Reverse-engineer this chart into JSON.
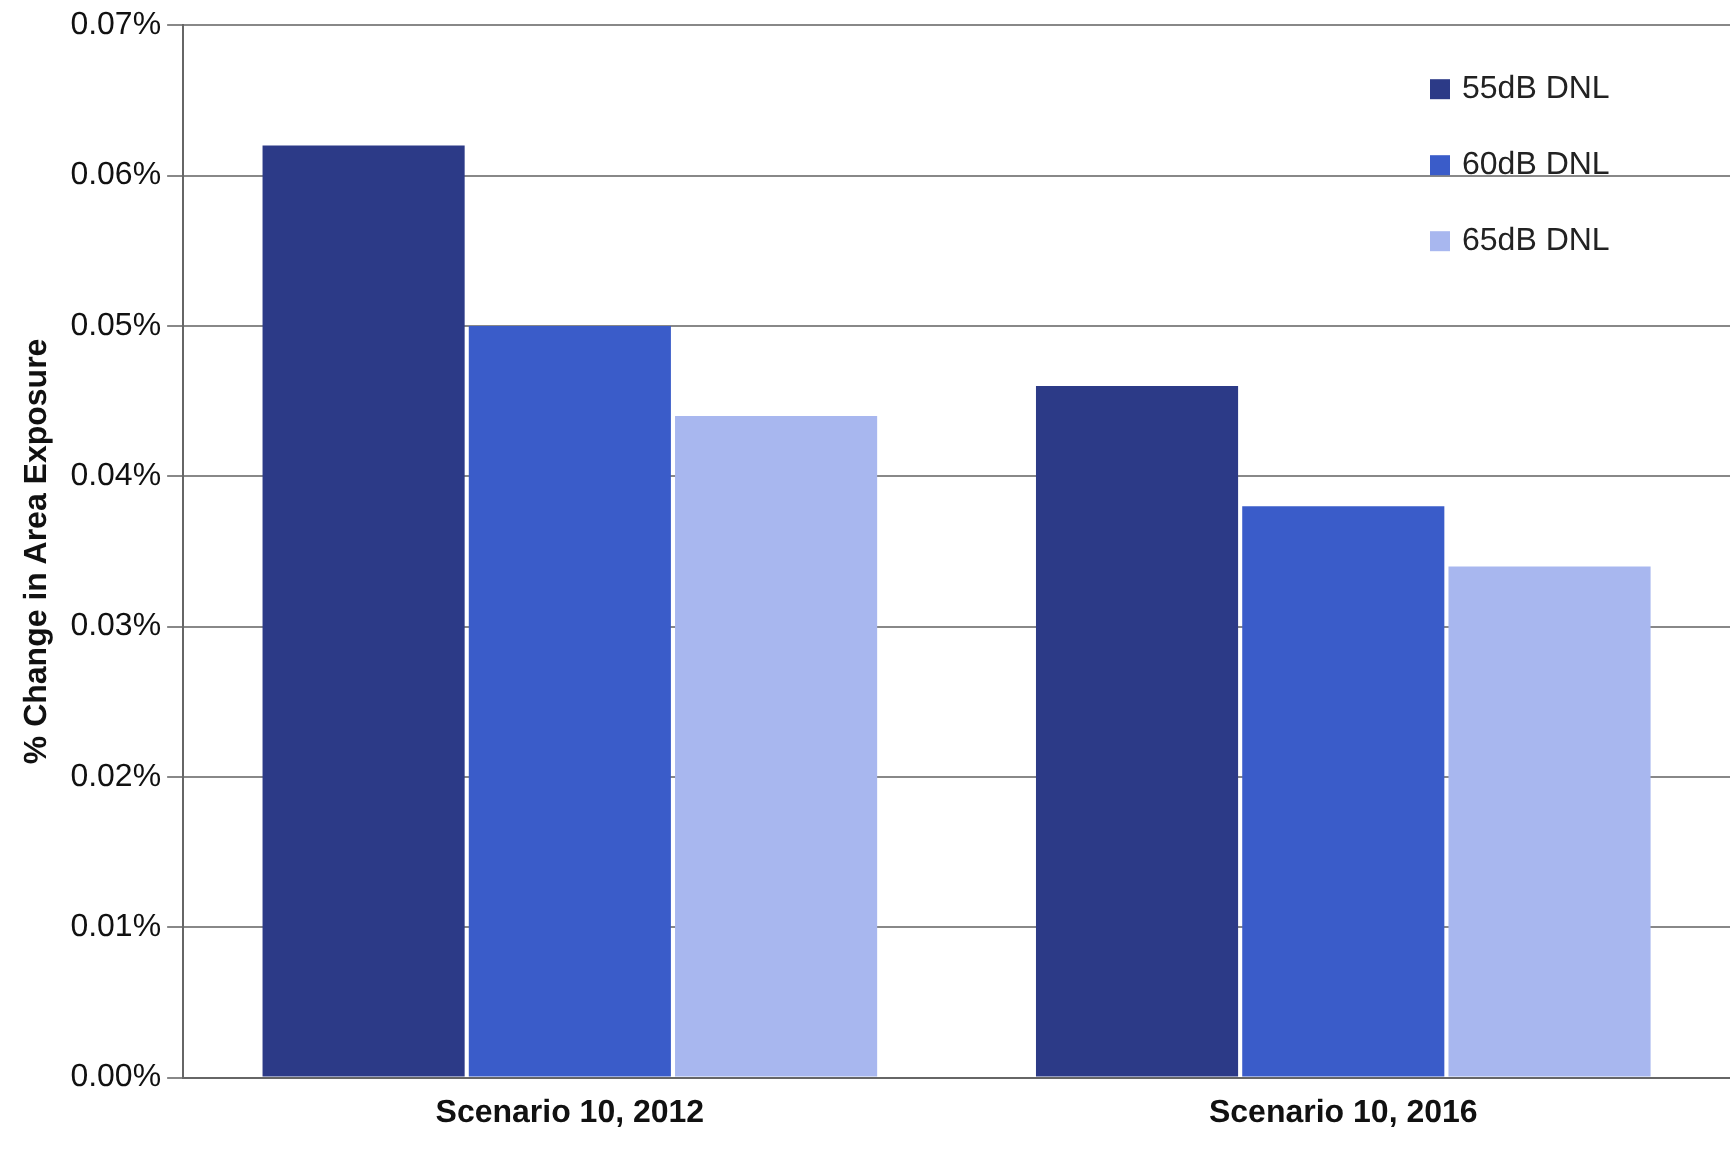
{
  "chart_data": {
    "type": "bar",
    "ylabel": "% Change in Area Exposure",
    "categories": [
      "Scenario 10, 2012",
      "Scenario 10, 2016"
    ],
    "series": [
      {
        "name": "55dB DNL",
        "color": "#2c3a87",
        "values": [
          0.062,
          0.046
        ]
      },
      {
        "name": "60dB DNL",
        "color": "#3a5cc9",
        "values": [
          0.05,
          0.038
        ]
      },
      {
        "name": "65dB DNL",
        "color": "#a8b7ef",
        "values": [
          0.044,
          0.034
        ]
      }
    ],
    "ylim": [
      0,
      0.07
    ],
    "yticks": [
      {
        "value": 0,
        "label": "0.00%"
      },
      {
        "value": 0.01,
        "label": "0.01%"
      },
      {
        "value": 0.02,
        "label": "0.02%"
      },
      {
        "value": 0.03,
        "label": "0.03%"
      },
      {
        "value": 0.04,
        "label": "0.04%"
      },
      {
        "value": 0.05,
        "label": "0.05%"
      },
      {
        "value": 0.06,
        "label": "0.06%"
      },
      {
        "value": 0.07,
        "label": "0.07%"
      }
    ],
    "grid": "y",
    "legend": "top right"
  }
}
